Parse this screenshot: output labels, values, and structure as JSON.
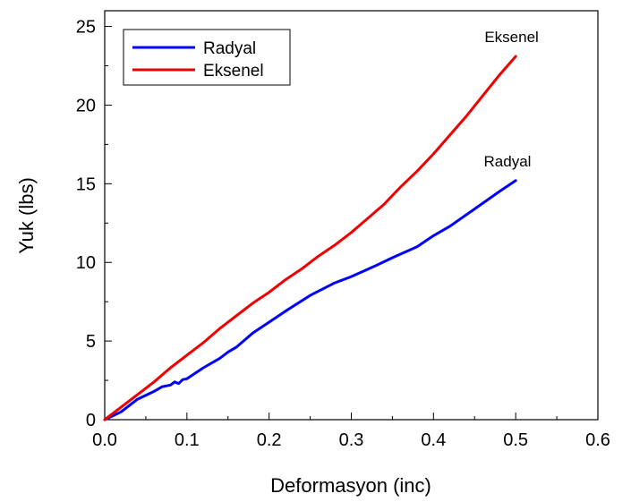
{
  "chart_data": {
    "type": "line",
    "title": "",
    "xlabel": "Deformasyon (inc)",
    "ylabel": "Yuk (lbs)",
    "xlim": [
      0.0,
      0.6
    ],
    "ylim": [
      0,
      26
    ],
    "x_ticks": [
      "0.0",
      "0.1",
      "0.2",
      "0.3",
      "0.4",
      "0.5",
      "0.6"
    ],
    "y_ticks": [
      "0",
      "5",
      "10",
      "15",
      "20",
      "25"
    ],
    "grid": false,
    "legend": {
      "placement": "top-left",
      "entries": [
        "Radyal",
        "Eksenel"
      ]
    },
    "series": [
      {
        "name": "Radyal",
        "color": "#0000ff",
        "x": [
          0.0,
          0.02,
          0.04,
          0.06,
          0.07,
          0.08,
          0.085,
          0.09,
          0.095,
          0.1,
          0.12,
          0.14,
          0.15,
          0.16,
          0.18,
          0.2,
          0.22,
          0.25,
          0.28,
          0.3,
          0.33,
          0.35,
          0.38,
          0.4,
          0.42,
          0.45,
          0.48,
          0.5
        ],
        "values": [
          0.0,
          0.5,
          1.3,
          1.8,
          2.1,
          2.2,
          2.4,
          2.3,
          2.55,
          2.6,
          3.3,
          3.9,
          4.3,
          4.6,
          5.5,
          6.2,
          6.9,
          7.9,
          8.7,
          9.1,
          9.8,
          10.3,
          11.0,
          11.7,
          12.3,
          13.4,
          14.5,
          15.2
        ]
      },
      {
        "name": "Eksenel",
        "color": "#ee0000",
        "x": [
          0.0,
          0.02,
          0.04,
          0.06,
          0.08,
          0.1,
          0.12,
          0.14,
          0.16,
          0.18,
          0.2,
          0.22,
          0.24,
          0.26,
          0.28,
          0.3,
          0.32,
          0.34,
          0.36,
          0.38,
          0.4,
          0.42,
          0.44,
          0.46,
          0.48,
          0.5
        ],
        "values": [
          0.0,
          0.8,
          1.6,
          2.4,
          3.3,
          4.1,
          4.9,
          5.8,
          6.6,
          7.4,
          8.1,
          8.9,
          9.6,
          10.4,
          11.1,
          11.9,
          12.8,
          13.7,
          14.8,
          15.8,
          16.9,
          18.1,
          19.3,
          20.6,
          21.9,
          23.1
        ]
      }
    ],
    "annotations": [
      {
        "text": "Eksenel",
        "x": 0.495,
        "y": 24.0
      },
      {
        "text": "Radyal",
        "x": 0.49,
        "y": 16.1
      }
    ]
  }
}
